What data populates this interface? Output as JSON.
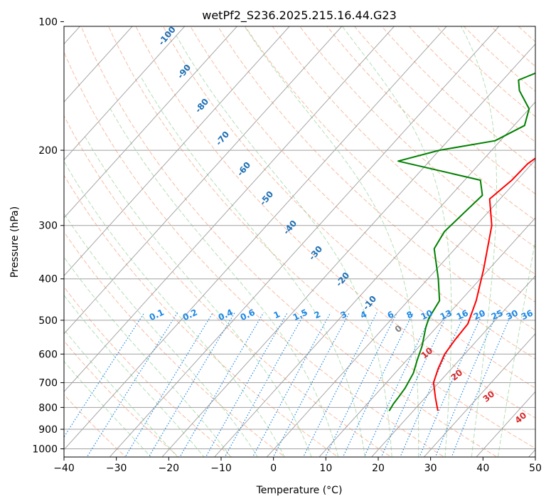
{
  "chart_data": {
    "type": "line",
    "title": "wetPf2_S236.2025.215.16.44.G23",
    "xlabel": "Temperature (°C)",
    "ylabel": "Pressure (hPa)",
    "xlim": [
      -40,
      50
    ],
    "ylim": [
      1050,
      100
    ],
    "y_scale": "log",
    "grid": true,
    "x_ticks": [
      "−40",
      "−30",
      "−20",
      "−10",
      "0",
      "10",
      "20",
      "30",
      "40",
      "50"
    ],
    "y_ticks": [
      "100",
      "200",
      "300",
      "400",
      "500",
      "600",
      "700",
      "800",
      "900",
      "1000"
    ],
    "series": [
      {
        "name": "",
        "color": "#ff0000",
        "points": [
          [
            24.7,
            815
          ],
          [
            22.0,
            760
          ],
          [
            19.0,
            700
          ],
          [
            17.5,
            650
          ],
          [
            16.2,
            600
          ],
          [
            15.7,
            555
          ],
          [
            15.4,
            510
          ],
          [
            13.0,
            450
          ],
          [
            9.0,
            380
          ],
          [
            3.0,
            300
          ],
          [
            -2.0,
            260
          ],
          [
            -1.0,
            235
          ],
          [
            -0.8,
            215
          ],
          [
            0.5,
            200
          ],
          [
            0.8,
            170
          ],
          [
            1.0,
            150
          ],
          [
            2.0,
            130
          ],
          [
            2.5,
            120
          ],
          [
            3.0,
            110
          ],
          [
            3.0,
            100
          ]
        ]
      },
      {
        "name": "",
        "color": "#008000",
        "points": [
          [
            15.4,
            815
          ],
          [
            15.0,
            785
          ],
          [
            14.8,
            755
          ],
          [
            14.5,
            720
          ],
          [
            13.5,
            665
          ],
          [
            12.0,
            620
          ],
          [
            10.5,
            575
          ],
          [
            8.0,
            520
          ],
          [
            7.0,
            495
          ],
          [
            6.0,
            450
          ],
          [
            2.0,
            400
          ],
          [
            -4.0,
            340
          ],
          [
            -5.0,
            310
          ],
          [
            -4.5,
            280
          ],
          [
            -4.0,
            255
          ],
          [
            -7.0,
            235
          ],
          [
            -26.0,
            212
          ],
          [
            -20.0,
            200
          ],
          [
            -11.0,
            190
          ],
          [
            -8.0,
            175
          ],
          [
            -10.0,
            160
          ],
          [
            -15.0,
            145
          ],
          [
            -17.0,
            137
          ],
          [
            -12.0,
            125
          ],
          [
            -9.0,
            115
          ],
          [
            -8.0,
            100
          ]
        ]
      }
    ],
    "mixing_ratio_labels": [
      "0.1",
      "0.2",
      "0.4",
      "0.6",
      "1",
      "1.5",
      "2",
      "3",
      "4",
      "6",
      "8",
      "10",
      "13",
      "16",
      "20",
      "25",
      "30",
      "36"
    ],
    "dry_adiabat_labels": [
      "-100",
      "-90",
      "-80",
      "-70",
      "-60",
      "-50",
      "-40",
      "-30",
      "-20",
      "-10"
    ],
    "moist_adiabat_labels": [
      "0",
      "10",
      "20",
      "30",
      "40"
    ],
    "colors": {
      "temperature": "#ff0000",
      "dewpoint": "#008000",
      "dry_adiabat": "#f4a582",
      "moist_adiabat": "#74c476",
      "mixing_ratio": "#1e88e5",
      "isotherm": "#808080",
      "isobar": "#a0a0a0",
      "dry_label": "#2171b5",
      "mixing_label": "#1e88e5",
      "moist_label": "#d62728",
      "moist_zero_label": "#808080"
    }
  }
}
